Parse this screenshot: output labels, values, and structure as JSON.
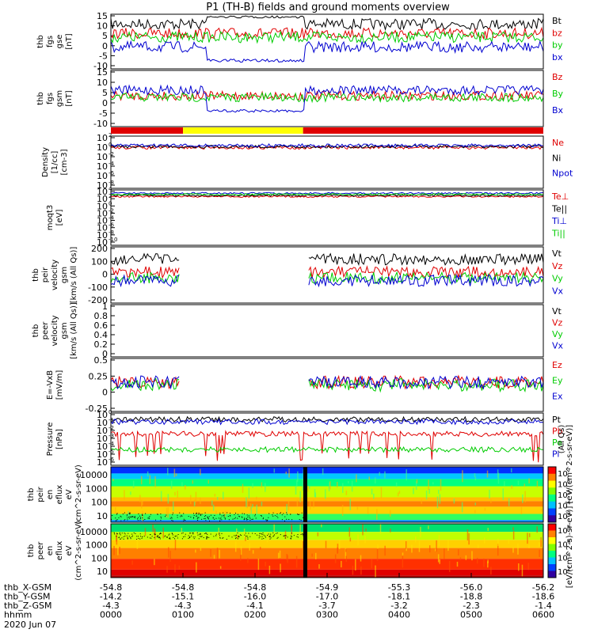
{
  "title": "P1 (TH-B) fields and ground moments overview",
  "date": "2020 Jun 07",
  "chart_data": [
    {
      "id": "fgs_gse",
      "type": "line",
      "ylabels": [
        "thb",
        "fgs",
        "gse",
        "[nT]"
      ],
      "yticks": [
        15,
        10,
        5,
        0,
        -5,
        -10
      ],
      "ylim": [
        -15,
        17
      ],
      "series": [
        {
          "name": "Bt",
          "color": "#000000"
        },
        {
          "name": "bz",
          "color": "#e00000"
        },
        {
          "name": "by",
          "color": "#00cc00"
        },
        {
          "name": "bx",
          "color": "#0000d0"
        }
      ]
    },
    {
      "id": "fgs_gsm",
      "type": "line",
      "ylabels": [
        "thb",
        "fgs",
        "gsm",
        "[nT]"
      ],
      "yticks": [
        15,
        10,
        5,
        0,
        -5,
        -10
      ],
      "ylim": [
        -15,
        16
      ],
      "series": [
        {
          "name": "Bz",
          "color": "#e00000"
        },
        {
          "name": "By",
          "color": "#00cc00"
        },
        {
          "name": "Bx",
          "color": "#0000d0"
        }
      ]
    },
    {
      "id": "density",
      "type": "line",
      "ylabels": [
        "Density",
        "[1/cc]",
        "[cm-3]"
      ],
      "yticks": [
        "10^2",
        "10^0",
        "10^-2",
        "10^-4",
        "10^-6",
        "10^-8"
      ],
      "ylim": [
        "10^-9",
        "10^3"
      ],
      "log": true,
      "series": [
        {
          "name": "Ne",
          "color": "#e00000"
        },
        {
          "name": "Ni",
          "color": "#000000"
        },
        {
          "name": "Npot",
          "color": "#0000d0"
        }
      ]
    },
    {
      "id": "temperature",
      "type": "line",
      "ylabels": [
        "moqt3",
        "[eV]"
      ],
      "yticks": [
        "10^4",
        "10^2",
        "10^0",
        "10^-2",
        "10^-4",
        "10^-6",
        "10^-8",
        "10^-10"
      ],
      "ylim": [
        "10^-10",
        "10^5"
      ],
      "log": true,
      "series": [
        {
          "name": "Te⊥",
          "color": "#e00000"
        },
        {
          "name": "Te||",
          "color": "#000000"
        },
        {
          "name": "Ti⊥",
          "color": "#0000d0"
        },
        {
          "name": "Ti||",
          "color": "#00cc00"
        }
      ]
    },
    {
      "id": "peir_velocity",
      "type": "line",
      "ylabels": [
        "thb",
        "peir",
        "velocity",
        "gsm",
        "[km/s (All Qs)]"
      ],
      "yticks": [
        200,
        100,
        0,
        -100,
        -200
      ],
      "ylim": [
        -200,
        200
      ],
      "series": [
        {
          "name": "Vt",
          "color": "#000000"
        },
        {
          "name": "Vz",
          "color": "#e00000"
        },
        {
          "name": "Vy",
          "color": "#00cc00"
        },
        {
          "name": "Vx",
          "color": "#0000d0"
        }
      ]
    },
    {
      "id": "peer_velocity",
      "type": "line",
      "ylabels": [
        "thb",
        "peer",
        "velocity",
        "gsm",
        "[km/s (All Qs)]"
      ],
      "yticks": [
        1.0,
        0.8,
        0.6,
        0.4,
        0.2,
        0.0
      ],
      "ylim": [
        0,
        1
      ],
      "series": [
        {
          "name": "Vt",
          "color": "#000000"
        },
        {
          "name": "Vz",
          "color": "#e00000"
        },
        {
          "name": "Vy",
          "color": "#00cc00"
        },
        {
          "name": "Vx",
          "color": "#0000d0"
        }
      ]
    },
    {
      "id": "efield",
      "type": "line",
      "ylabels": [
        "E=-VxB",
        "[mV/m]"
      ],
      "yticks": [
        0.5,
        0.25,
        0.0,
        -0.25
      ],
      "ylim": [
        -0.5,
        0.5
      ],
      "series": [
        {
          "name": "Ez",
          "color": "#e00000"
        },
        {
          "name": "Ey",
          "color": "#00cc00"
        },
        {
          "name": "Ex",
          "color": "#0000d0"
        }
      ]
    },
    {
      "id": "pressure",
      "type": "line",
      "ylabels": [
        "Pressure",
        "[nPa]"
      ],
      "yticks": [
        "10^0",
        "10^-1",
        "10^-2",
        "10^-3",
        "10^-4",
        "10^-5",
        "10^-6"
      ],
      "ylim": [
        "10^-6",
        "10^0"
      ],
      "log": true,
      "series": [
        {
          "name": "Pt",
          "color": "#000000"
        },
        {
          "name": "Pb",
          "color": "#e00000"
        },
        {
          "name": "Pe",
          "color": "#00cc00"
        },
        {
          "name": "Pi",
          "color": "#0000d0"
        }
      ],
      "side_label": "(All Qs)"
    },
    {
      "id": "peir_eflux",
      "type": "heatmap",
      "ylabels": [
        "thb",
        "peir",
        "en",
        "eflux",
        "eV",
        "(cm^2-s-sr-eV)"
      ],
      "yticks": [
        10000,
        1000,
        100,
        10
      ],
      "colorbar_ticks": [
        "10^7",
        "10^6",
        "10^5",
        "10^4",
        "10^3"
      ]
    },
    {
      "id": "peer_eflux",
      "type": "heatmap",
      "ylabels": [
        "thb",
        "peer",
        "en",
        "eflux",
        "eV",
        "(cm^2-s-sr-eV)"
      ],
      "yticks": [
        10000,
        1000,
        100,
        10
      ],
      "colorbar_ticks": [
        "10^8",
        "10^6",
        "10^4",
        "10^2"
      ]
    }
  ],
  "colorbar_label": "[eV/(cm^2-s)-sr-eV)] [eV/(cm^2-s-sr-eV)]",
  "time_axis": {
    "rows": [
      {
        "label": "thb_X-GSM",
        "values": [
          "-54.8",
          "-54.8",
          "-54.8",
          "-54.9",
          "-55.3",
          "-56.0",
          "-56.2"
        ]
      },
      {
        "label": "thb_Y-GSM",
        "values": [
          "-14.2",
          "-15.1",
          "-16.0",
          "-17.0",
          "-18.1",
          "-18.8",
          "-18.6"
        ]
      },
      {
        "label": "thb_Z-GSM",
        "values": [
          "-4.3",
          "-4.3",
          "-4.1",
          "-3.7",
          "-3.2",
          "-2.3",
          "-1.4"
        ]
      },
      {
        "label": "hhmm",
        "values": [
          "0000",
          "0100",
          "0200",
          "0300",
          "0400",
          "0500",
          "0600"
        ]
      }
    ]
  },
  "mode_bar": [
    {
      "from": "0000",
      "to": "0100",
      "color": "#e00000"
    },
    {
      "from": "0100",
      "to": "0240",
      "color": "#ffff00"
    },
    {
      "from": "0240",
      "to": "0600",
      "color": "#e00000"
    }
  ],
  "colors": {
    "black": "#000000",
    "red": "#e00000",
    "green": "#00cc00",
    "blue": "#0000d0"
  }
}
